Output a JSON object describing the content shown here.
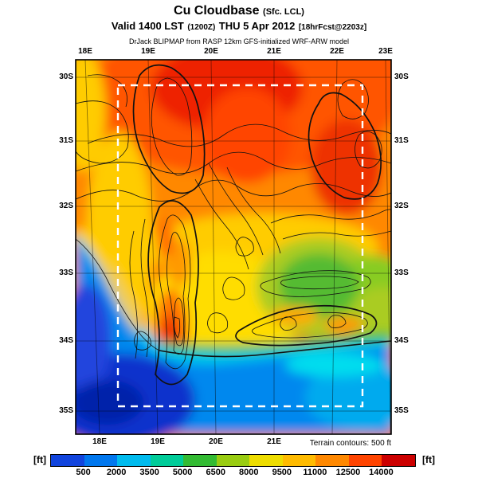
{
  "title": {
    "main": "Cu Cloudbase",
    "suffix": "(Sfc. LCL)",
    "valid_bold1": "Valid 1400 LST",
    "valid_small1": "(1200Z)",
    "valid_bold2": "THU 5 Apr 2012",
    "valid_small2": "[18hrFcst@2203z]",
    "model_line": "DrJack BLIPMAP from RASP 12km GFS-initialized WRF-ARW model"
  },
  "map": {
    "top_labels": [
      "18E",
      "19E",
      "20E",
      "21E",
      "22E",
      "23E"
    ],
    "bottom_labels": [
      "18E",
      "19E",
      "20E",
      "21E"
    ],
    "left_labels": [
      "30S",
      "31S",
      "32S",
      "33S",
      "34S",
      "35S"
    ],
    "right_labels": [
      "30S",
      "31S",
      "32S",
      "33S",
      "34S",
      "35S"
    ],
    "terrain_note": "Terrain contours: 500 ft"
  },
  "colorbar": {
    "unit": "[ft]",
    "ticks": [
      "500",
      "2000",
      "3500",
      "5000",
      "6500",
      "8000",
      "9500",
      "11000",
      "12500",
      "14000"
    ],
    "colors": [
      "#1144dd",
      "#0077ee",
      "#00bbee",
      "#00cc99",
      "#33bb33",
      "#99cc11",
      "#eedd00",
      "#ffbb00",
      "#ff8800",
      "#ff4400",
      "#cc0000"
    ]
  }
}
